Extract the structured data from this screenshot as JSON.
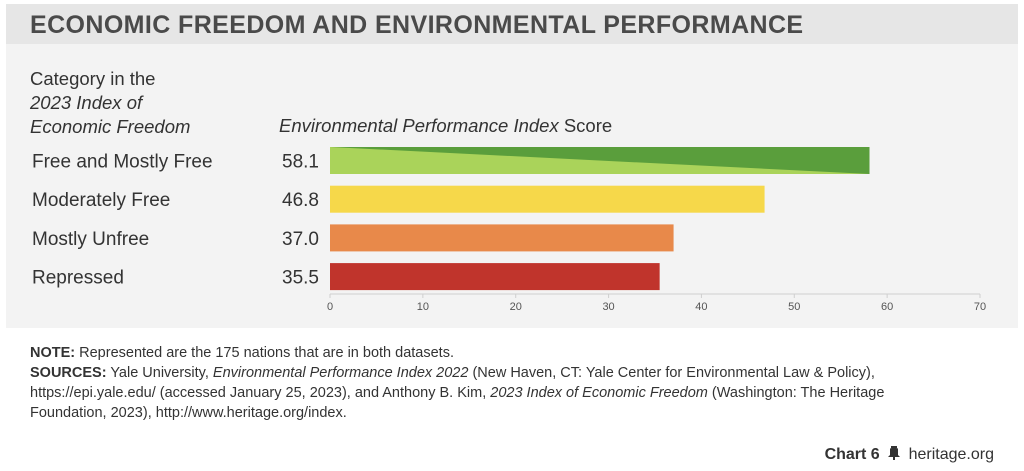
{
  "title": "ECONOMIC FREEDOM AND ENVIRONMENTAL PERFORMANCE",
  "column_headers": {
    "left_line1": "Category in the",
    "left_line2": "2023 Index of",
    "left_line3": "Economic Freedom",
    "right_italic": "Environmental Performance Index",
    "right_plain": " Score"
  },
  "chart_data": {
    "type": "bar",
    "orientation": "horizontal",
    "categories": [
      "Free and Mostly Free",
      "Moderately Free",
      "Mostly Unfree",
      "Repressed"
    ],
    "values": [
      58.1,
      46.8,
      37.0,
      35.5
    ],
    "value_labels": [
      "58.1",
      "46.8",
      "37.0",
      "35.5"
    ],
    "colors": [
      "#5a9e3c",
      "#f6d84a",
      "#e8894a",
      "#c0342c"
    ],
    "gradient_secondary_color": "#aad35a",
    "xlim": [
      0,
      70
    ],
    "xticks": [
      "0",
      "10",
      "20",
      "30",
      "40",
      "50",
      "60",
      "70"
    ],
    "grid": false
  },
  "notes": {
    "note_label": "NOTE:",
    "note_text": " Represented are the 175 nations that are in both datasets.",
    "sources_label": "SOURCES:",
    "src_1": " Yale University, ",
    "src_2_italic": "Environmental Performance Index 2022",
    "src_3": " (New Haven, CT: Yale Center for Environmental Law & Policy), https://epi.yale.edu/ (accessed January 25, 2023), and Anthony B. Kim, ",
    "src_4_italic": "2023 Index of Economic Freedom",
    "src_5": " (Washington: The Heritage Foundation, 2023), http://www.heritage.org/index."
  },
  "footer": {
    "chart_label": "Chart 6",
    "site": "heritage.org"
  }
}
